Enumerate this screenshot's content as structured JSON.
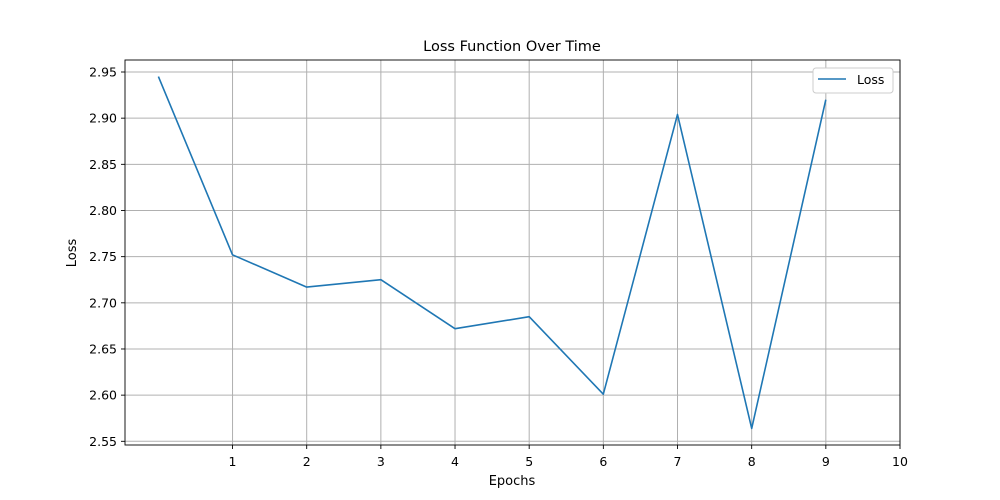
{
  "chart_data": {
    "type": "line",
    "title": "Loss Function Over Time",
    "xlabel": "Epochs",
    "ylabel": "Loss",
    "xlim": [
      -0.45,
      10
    ],
    "ylim": [
      2.546,
      2.963
    ],
    "x_ticks": [
      1,
      2,
      3,
      4,
      5,
      6,
      7,
      8,
      9,
      10
    ],
    "y_ticks": [
      2.55,
      2.6,
      2.65,
      2.7,
      2.75,
      2.8,
      2.85,
      2.9,
      2.95
    ],
    "y_tick_labels": [
      "2.55",
      "2.60",
      "2.65",
      "2.70",
      "2.75",
      "2.80",
      "2.85",
      "2.90",
      "2.95"
    ],
    "grid": true,
    "legend_position": "top-right",
    "series": [
      {
        "name": "Loss",
        "color": "#1f77b4",
        "x": [
          0,
          1,
          2,
          3,
          4,
          5,
          6,
          7,
          8,
          9
        ],
        "values": [
          2.945,
          2.752,
          2.717,
          2.725,
          2.672,
          2.685,
          2.601,
          2.904,
          2.564,
          2.92
        ]
      }
    ]
  }
}
